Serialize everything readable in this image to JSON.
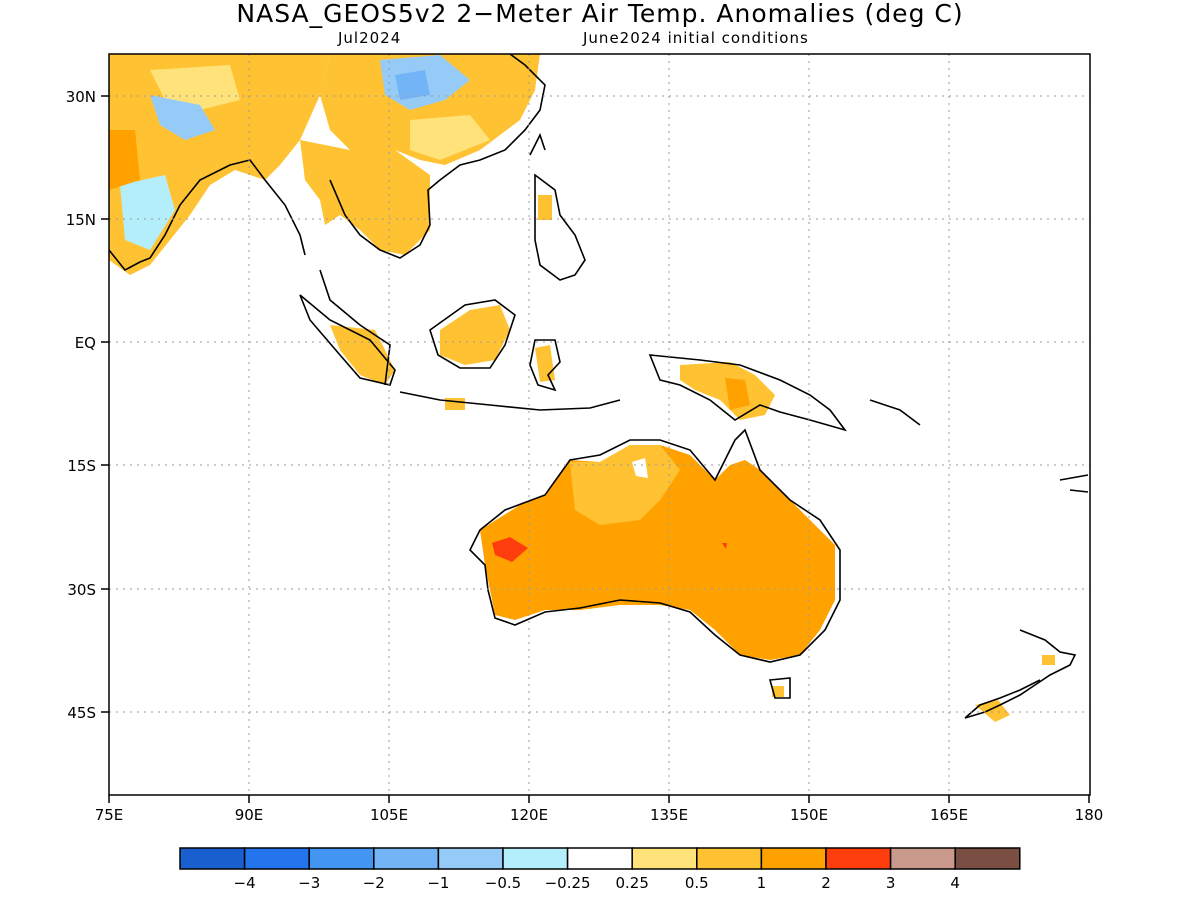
{
  "title": "NASA_GEOS5v2 2−Meter Air Temp. Anomalies (deg C)",
  "subtitle_left": "Jul2024",
  "subtitle_right": "June2024 initial conditions",
  "map": {
    "lon_labels": [
      "75E",
      "90E",
      "105E",
      "120E",
      "135E",
      "150E",
      "165E",
      "180"
    ],
    "lat_labels": [
      "30N",
      "15N",
      "EQ",
      "15S",
      "30S",
      "45S"
    ]
  },
  "colorbar": {
    "colors": [
      "#1a5fd0",
      "#2474ee",
      "#4296f2",
      "#73b4f6",
      "#96cbf7",
      "#b4eefa",
      "#ffffff",
      "#ffe27a",
      "#ffc232",
      "#ffa200",
      "#ff3d0d",
      "#c99a8c",
      "#7a4e42"
    ],
    "labels": [
      "−4",
      "−3",
      "−2",
      "−1",
      "−0.5",
      "−0.25",
      "0.25",
      "0.5",
      "1",
      "2",
      "3",
      "4"
    ]
  },
  "legend": {
    "units": "deg C"
  }
}
